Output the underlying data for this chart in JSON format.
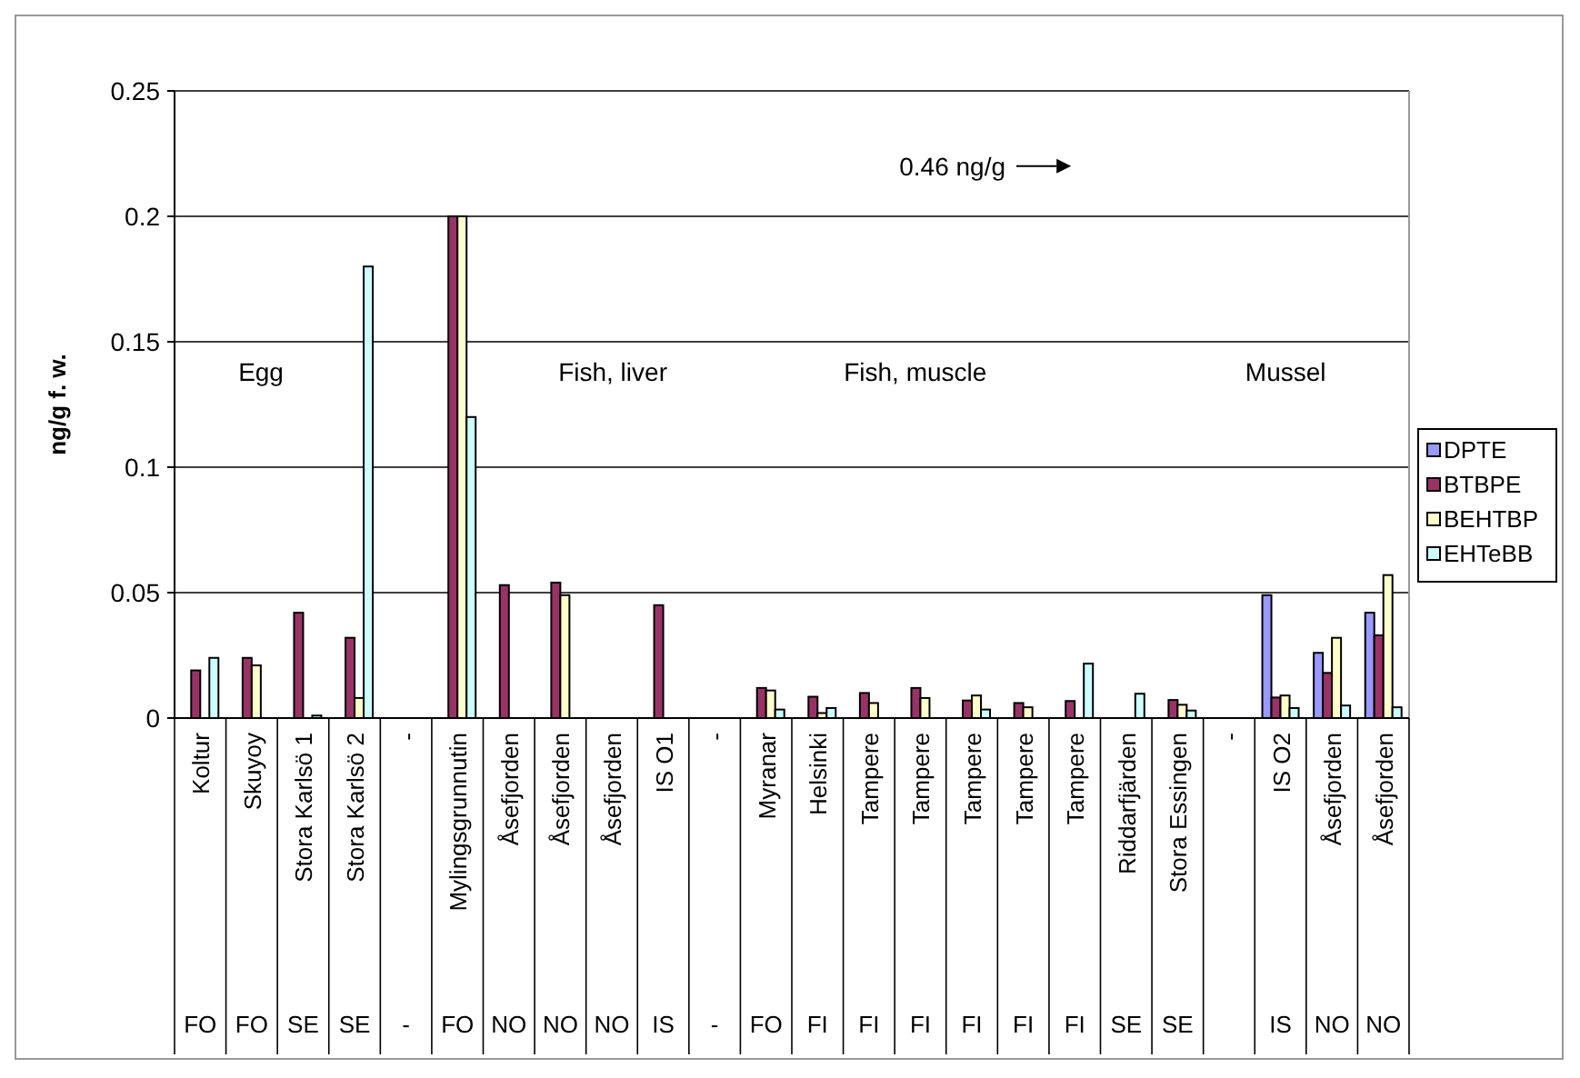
{
  "chart_data": {
    "type": "bar",
    "ylabel": "ng/g f. w.",
    "categories": [
      "Koltur\nFO",
      "Skuyoy\nFO",
      "Stora Karlsö 1\nSE",
      "Stora Karlsö 2\nSE",
      "-\n-",
      "Mylingsgrunnutin\nFO",
      "Åsefjorden\nNO",
      "Åsefjorden\nNO",
      "Åsefjorden\nNO",
      "IS O1\nIS",
      "-\n-",
      "Myranar\nFO",
      "Helsinki\nFI",
      "Tampere\nFI",
      "Tampere\nFI",
      "Tampere\nFI",
      "Tampere\nFI",
      "Tampere\nFI",
      "Riddarfjärden\nSE",
      "Stora Essingen\nSE",
      "-\n",
      "IS O2\nIS",
      "Åsefjorden\nNO",
      "Åsefjorden\nNO"
    ],
    "series": [
      {
        "name": "DPTE",
        "color": "#9999ff",
        "values": [
          null,
          null,
          null,
          null,
          null,
          null,
          null,
          null,
          null,
          null,
          null,
          null,
          null,
          null,
          null,
          null,
          null,
          null,
          null,
          null,
          null,
          0.049,
          0.026,
          0.042
        ]
      },
      {
        "name": "BTBPE",
        "color": "#993366",
        "values": [
          0.019,
          0.024,
          0.042,
          0.032,
          null,
          0.2,
          0.053,
          0.054,
          null,
          0.045,
          null,
          0.012,
          0.0085,
          0.01,
          0.012,
          0.007,
          0.006,
          0.0068,
          null,
          0.0072,
          null,
          0.0082,
          0.018,
          0.033
        ]
      },
      {
        "name": "BEHTBP",
        "color": "#ffffcc",
        "values": [
          null,
          0.021,
          null,
          0.008,
          null,
          0.2,
          null,
          0.049,
          null,
          null,
          null,
          0.011,
          0.002,
          0.006,
          0.008,
          0.009,
          0.0043,
          null,
          null,
          0.0053,
          null,
          0.009,
          0.032,
          0.057
        ]
      },
      {
        "name": "EHTeBB",
        "color": "#ccffff",
        "values": [
          0.024,
          null,
          0.001,
          0.18,
          null,
          0.12,
          null,
          null,
          null,
          null,
          null,
          0.0034,
          0.004,
          null,
          null,
          0.0034,
          null,
          0.0217,
          0.0097,
          0.003,
          null,
          0.004,
          0.005,
          0.0043
        ]
      }
    ],
    "ylim": [
      0,
      0.25
    ],
    "yticks": [
      0,
      0.05,
      0.1,
      0.15,
      0.2,
      0.25
    ],
    "grid": "y",
    "legend": "right",
    "annotations": [
      "Egg",
      "Fish, liver",
      "Fish, muscle",
      "Mussel",
      "0.46 ng/g"
    ]
  }
}
